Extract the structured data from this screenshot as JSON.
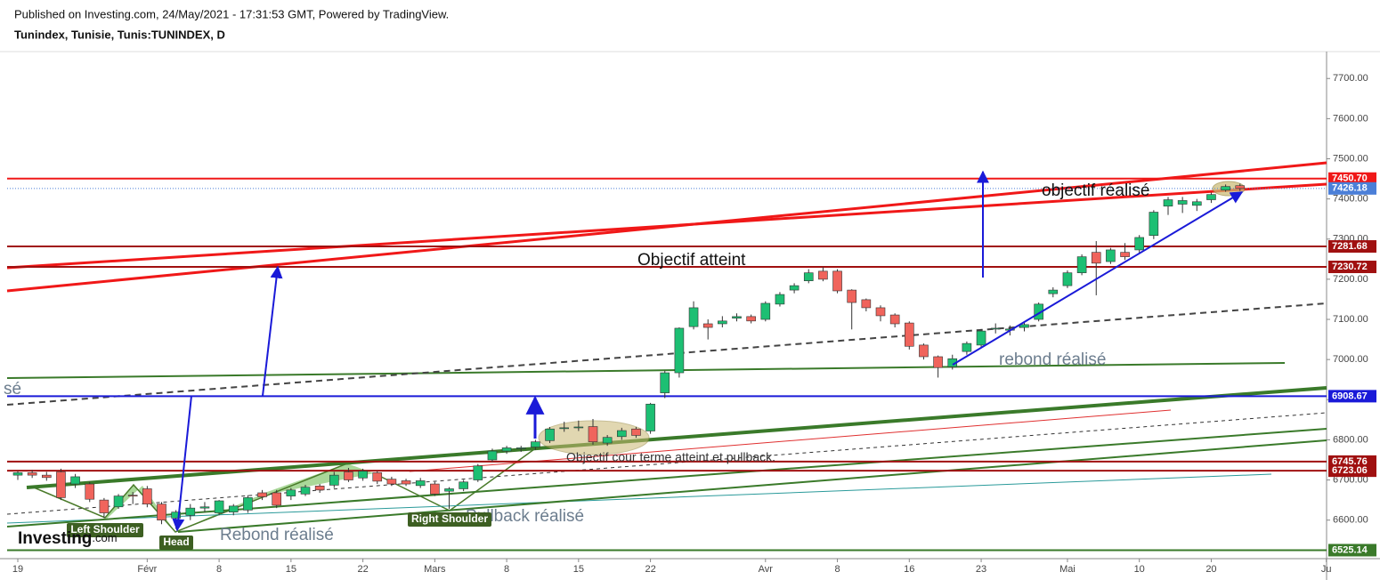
{
  "header": {
    "published": "Published on Investing.com, 24/May/2021 - 17:31:53 GMT, Powered by TradingView.",
    "symbol": "Tunindex, Tunisie, Tunis:TUNINDEX, D",
    "logo": "Investing",
    "logo_suffix": ".com"
  },
  "chart_data": {
    "type": "candlestick",
    "up_color": "#1dbf73",
    "down_color": "#f0645c",
    "categories": [
      "19",
      null,
      null,
      null,
      null,
      null,
      null,
      null,
      null,
      "Févr",
      null,
      null,
      null,
      null,
      "8",
      null,
      null,
      null,
      null,
      "15",
      null,
      null,
      null,
      null,
      "22",
      null,
      null,
      null,
      null,
      "Mars",
      null,
      null,
      null,
      null,
      "8",
      null,
      null,
      null,
      null,
      "15",
      null,
      null,
      null,
      null,
      "22",
      null,
      null,
      null,
      null,
      null,
      null,
      null,
      "Avr",
      null,
      null,
      null,
      null,
      "8",
      null,
      null,
      null,
      null,
      "16",
      null,
      null,
      null,
      null,
      "23",
      null,
      null,
      null,
      null,
      null,
      "Mai",
      null,
      null,
      null,
      null,
      "10",
      null,
      null,
      null,
      null,
      "20",
      null,
      null,
      null,
      null,
      null,
      null,
      null,
      "Ju"
    ],
    "open": [
      6712,
      6718,
      6712,
      6720,
      6690,
      6690,
      6650,
      6633,
      6662,
      6678,
      6640,
      6605,
      6612,
      6630,
      6618,
      6620,
      6625,
      6668,
      6668,
      6660,
      6665,
      6685,
      6687,
      6720,
      6705,
      6718,
      6702,
      6698,
      6686,
      6690,
      6672,
      6678,
      6700,
      6750,
      6772,
      6778,
      6782,
      6798,
      6828,
      6830,
      6833,
      6792,
      6808,
      6827,
      6822,
      6917,
      6967,
      7082,
      7089,
      7089,
      7103,
      7107,
      7100,
      7138,
      7173,
      7196,
      7220,
      7220,
      7173,
      7149,
      7129,
      7111,
      7091,
      7036,
      7007,
      6982,
      7020,
      7036,
      7076,
      7073,
      7080,
      7100,
      7164,
      7184,
      7216,
      7267,
      7244,
      7267,
      7273,
      7309,
      7382,
      7387,
      7384,
      7398,
      7422,
      7433,
      null,
      null,
      null,
      null,
      null,
      null
    ],
    "high": [
      6722,
      6725,
      6720,
      6728,
      6715,
      6695,
      6655,
      6665,
      6670,
      6685,
      6645,
      6625,
      6640,
      6645,
      6650,
      6640,
      6662,
      6675,
      6675,
      6680,
      6688,
      6690,
      6720,
      6730,
      6728,
      6722,
      6708,
      6703,
      6705,
      6695,
      6682,
      6700,
      6740,
      6778,
      6785,
      6785,
      6800,
      6832,
      6845,
      6848,
      6852,
      6812,
      6830,
      6832,
      6892,
      6972,
      7080,
      7145,
      7100,
      7108,
      7115,
      7112,
      7145,
      7168,
      7190,
      7225,
      7230,
      7225,
      7175,
      7152,
      7135,
      7115,
      7095,
      7040,
      7010,
      7012,
      7045,
      7076,
      7090,
      7085,
      7092,
      7142,
      7180,
      7222,
      7262,
      7295,
      7278,
      7290,
      7310,
      7372,
      7405,
      7405,
      7400,
      7416,
      7436,
      7438,
      null,
      null,
      null,
      null,
      null,
      null
    ],
    "low": [
      6700,
      6705,
      6698,
      6650,
      6680,
      6645,
      6605,
      6628,
      6640,
      6632,
      6590,
      6578,
      6600,
      6620,
      6612,
      6612,
      6618,
      6650,
      6630,
      6650,
      6660,
      6668,
      6680,
      6695,
      6698,
      6690,
      6685,
      6685,
      6680,
      6660,
      6628,
      6672,
      6695,
      6745,
      6765,
      6770,
      6775,
      6792,
      6820,
      6822,
      6788,
      6785,
      6800,
      6805,
      6815,
      6904,
      6955,
      7075,
      7050,
      7080,
      7095,
      7090,
      7095,
      7132,
      7165,
      7190,
      7195,
      7165,
      7075,
      7120,
      7095,
      7080,
      7025,
      7000,
      6955,
      6975,
      7012,
      7030,
      7065,
      7060,
      7070,
      7095,
      7155,
      7178,
      7210,
      7160,
      7238,
      7248,
      7265,
      7300,
      7360,
      7365,
      7370,
      7390,
      7418,
      7420,
      null,
      null,
      null,
      null,
      null,
      null
    ],
    "close": [
      6718,
      6712,
      6706,
      6656,
      6708,
      6652,
      6618,
      6660,
      6660,
      6640,
      6600,
      6620,
      6630,
      6633,
      6648,
      6635,
      6656,
      6658,
      6637,
      6675,
      6682,
      6675,
      6712,
      6700,
      6722,
      6697,
      6690,
      6690,
      6698,
      6665,
      6678,
      6695,
      6735,
      6772,
      6780,
      6780,
      6795,
      6827,
      6830,
      6832,
      6795,
      6806,
      6823,
      6811,
      6889,
      6967,
      7078,
      7129,
      7080,
      7096,
      7107,
      7096,
      7140,
      7162,
      7184,
      7216,
      7200,
      7171,
      7142,
      7129,
      7109,
      7089,
      7033,
      7007,
      6980,
      7002,
      7040,
      7071,
      7078,
      7076,
      7087,
      7138,
      7173,
      7216,
      7256,
      7240,
      7273,
      7256,
      7304,
      7367,
      7398,
      7396,
      7393,
      7411,
      7431,
      7426.18,
      null,
      null,
      null,
      null,
      null,
      null
    ],
    "ylim": [
      6504,
      7767
    ],
    "yticks": [
      {
        "value": 6600,
        "label": "6600.00"
      },
      {
        "value": 6700,
        "label": "6700.00"
      },
      {
        "value": 6800,
        "label": "6800.00"
      },
      {
        "value": 6900,
        "label": "6900.00"
      },
      {
        "value": 7000,
        "label": "7000.00"
      },
      {
        "value": 7100,
        "label": "7100.00"
      },
      {
        "value": 7200,
        "label": "7200.00"
      },
      {
        "value": 7300,
        "label": "7300.00"
      },
      {
        "value": 7400,
        "label": "7400.00"
      },
      {
        "value": 7500,
        "label": "7500.00"
      },
      {
        "value": 7600,
        "label": "7600.00"
      },
      {
        "value": 7700,
        "label": "7700.00"
      }
    ],
    "levels": [
      {
        "value": 7450.7,
        "label": "7450.70",
        "color": "#f01818",
        "line_style": "solid"
      },
      {
        "value": 7426.18,
        "label": "7426.18",
        "color": "#4b7fd8",
        "line_style": "dotted"
      },
      {
        "value": 7281.68,
        "label": "7281.68",
        "color": "#a01010",
        "line_style": "solid"
      },
      {
        "value": 7230.72,
        "label": "7230.72",
        "color": "#a01010",
        "line_style": "solid"
      },
      {
        "value": 6908.67,
        "label": "6908.67",
        "color": "#1a1ad8",
        "line_style": "solid"
      },
      {
        "value": 6745.76,
        "label": "6745.76",
        "color": "#a01010",
        "line_style": "solid"
      },
      {
        "value": 6723.06,
        "label": "6723.06",
        "color": "#a01010",
        "line_style": "solid"
      },
      {
        "value": 6525.14,
        "label": "6525.14",
        "color": "#3a7a2a",
        "line_style": "solid"
      }
    ],
    "annotations": [
      "Objectif atteint",
      "objectif réalisé",
      "rebond réalisé",
      "Rebond réalisé",
      "Pullback réalisé",
      "Objectif cour terme atteint et pullback.",
      "sé",
      "Left Shoulder",
      "Head",
      "Right Shoulder"
    ]
  }
}
